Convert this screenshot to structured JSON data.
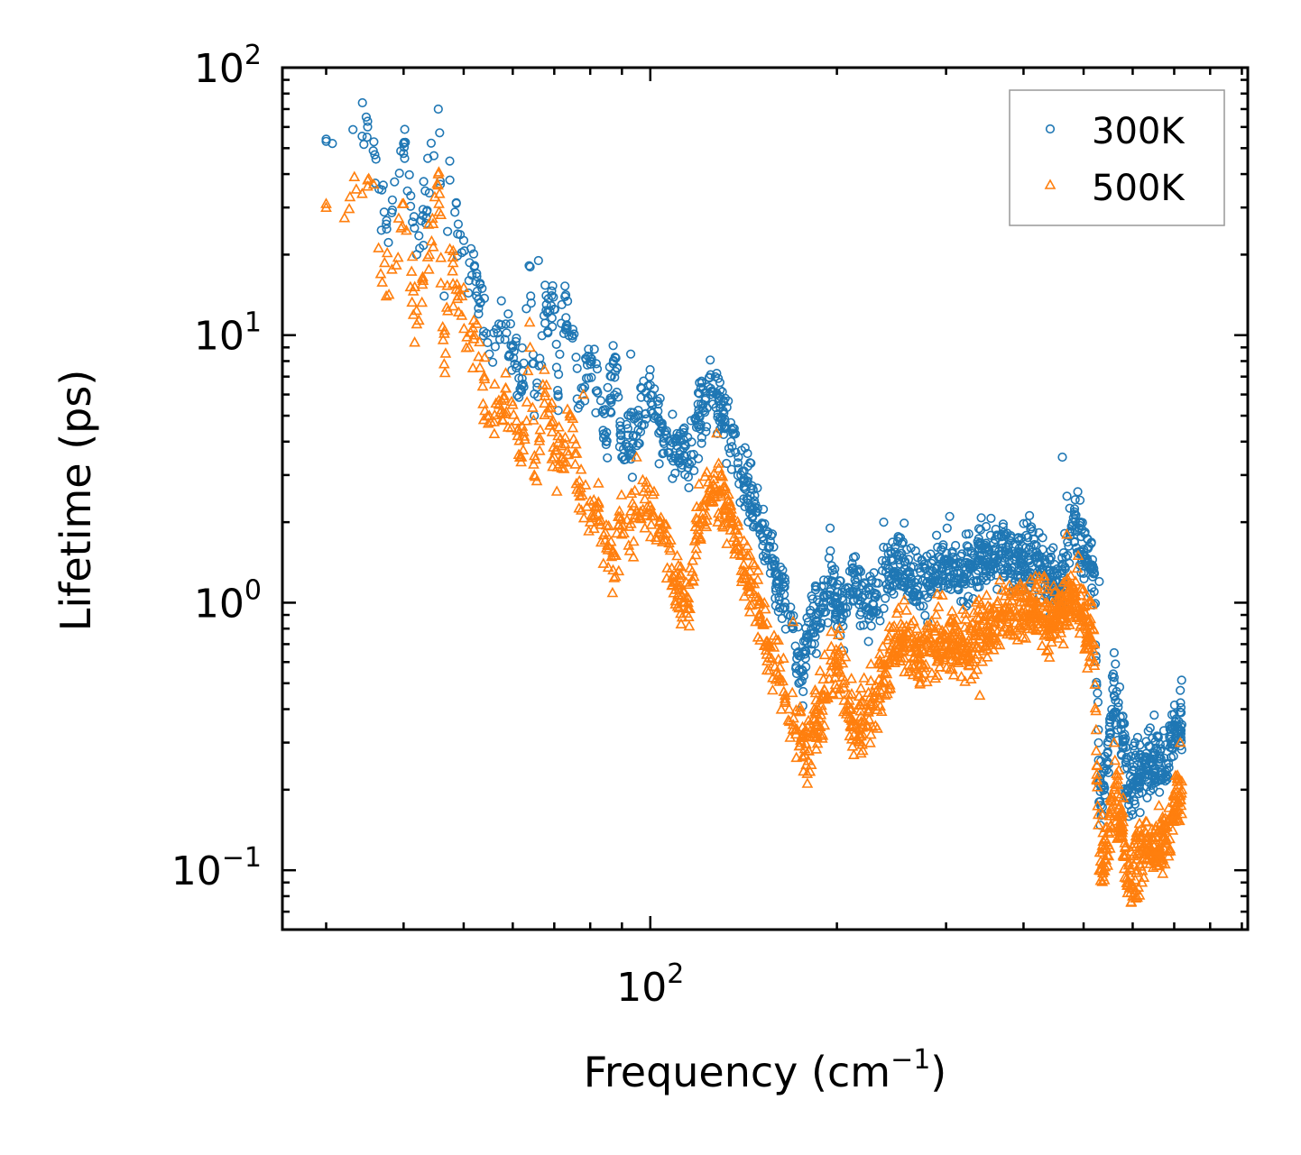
{
  "chart_data": {
    "type": "scatter",
    "title": "",
    "xlabel": "Frequency (cm",
    "xlabel_sup": "−1",
    "xlabel_end": ")",
    "ylabel": "Lifetime (ps)",
    "xscale": "log",
    "yscale": "log",
    "xlim": [
      25.5,
      920
    ],
    "ylim": [
      0.06,
      100
    ],
    "x_ticks": [
      {
        "value": 100,
        "base": "10",
        "exp": "2"
      }
    ],
    "y_ticks": [
      {
        "value": 0.1,
        "base": "10",
        "exp": "−1"
      },
      {
        "value": 1,
        "base": "10",
        "exp": "0"
      },
      {
        "value": 10,
        "base": "10",
        "exp": "1"
      },
      {
        "value": 100,
        "base": "10",
        "exp": "2"
      }
    ],
    "legend_position": "top-right",
    "series": [
      {
        "name": "300K",
        "color": "#1f77b4",
        "marker": "circle",
        "anchors": [
          [
            30,
            53
          ],
          [
            35,
            60
          ],
          [
            37.5,
            26
          ],
          [
            40,
            52
          ],
          [
            42,
            20
          ],
          [
            43,
            28
          ],
          [
            44,
            34
          ],
          [
            45.5,
            70
          ],
          [
            46.5,
            14
          ],
          [
            47.5,
            38
          ],
          [
            49,
            26
          ],
          [
            51,
            16
          ],
          [
            52,
            18
          ],
          [
            55,
            8.5
          ],
          [
            57,
            11
          ],
          [
            60,
            9
          ],
          [
            61,
            7.7
          ],
          [
            62,
            6.5
          ],
          [
            64,
            18
          ],
          [
            65,
            5
          ],
          [
            68,
            13
          ],
          [
            70,
            12.5
          ],
          [
            71,
            6
          ],
          [
            72,
            13
          ],
          [
            75,
            10.5
          ],
          [
            77,
            5.5
          ],
          [
            80,
            8
          ],
          [
            82,
            6.2
          ],
          [
            85,
            4
          ],
          [
            88,
            8.2
          ],
          [
            90,
            3.5
          ],
          [
            95,
            4.2
          ],
          [
            100,
            6.5
          ],
          [
            105,
            4
          ],
          [
            110,
            4
          ],
          [
            115,
            3.2
          ],
          [
            120,
            5
          ],
          [
            125,
            6
          ],
          [
            130,
            5.5
          ],
          [
            135,
            4
          ],
          [
            140,
            3
          ],
          [
            145,
            2.5
          ],
          [
            150,
            1.9
          ],
          [
            155,
            1.6
          ],
          [
            160,
            1.2
          ],
          [
            165,
            1
          ],
          [
            170,
            0.8
          ],
          [
            175,
            0.55
          ],
          [
            180,
            0.75
          ],
          [
            185,
            0.9
          ],
          [
            190,
            1
          ],
          [
            195,
            1.1
          ],
          [
            200,
            1
          ],
          [
            205,
            0.9
          ],
          [
            210,
            1.1
          ],
          [
            215,
            1.1
          ],
          [
            220,
            1.05
          ],
          [
            225,
            0.95
          ],
          [
            230,
            1.05
          ],
          [
            240,
            1.3
          ],
          [
            250,
            1.5
          ],
          [
            260,
            1.3
          ],
          [
            270,
            1.15
          ],
          [
            280,
            1.2
          ],
          [
            300,
            1.4
          ],
          [
            320,
            1.2
          ],
          [
            340,
            1.5
          ],
          [
            360,
            1.5
          ],
          [
            380,
            1.5
          ],
          [
            400,
            1.45
          ],
          [
            420,
            1.5
          ],
          [
            440,
            1.2
          ],
          [
            460,
            1.1
          ],
          [
            480,
            2
          ],
          [
            500,
            1.5
          ],
          [
            520,
            1.3
          ],
          [
            530,
            0.18
          ],
          [
            545,
            0.25
          ],
          [
            560,
            0.45
          ],
          [
            575,
            0.35
          ],
          [
            590,
            0.2
          ],
          [
            610,
            0.22
          ],
          [
            630,
            0.25
          ],
          [
            660,
            0.25
          ],
          [
            680,
            0.25
          ],
          [
            700,
            0.35
          ],
          [
            720,
            0.35
          ]
        ],
        "spread": [
          1.12,
          1.45
        ],
        "outliers": [
          [
            30,
            54
          ],
          [
            35,
            63
          ],
          [
            59,
            12
          ],
          [
            66,
            19
          ],
          [
            71,
            5.9
          ],
          [
            86,
            7.6
          ],
          [
            93,
            8.5
          ],
          [
            128,
            7.2
          ],
          [
            195,
            1.9
          ],
          [
            238,
            2
          ],
          [
            304,
            2.1
          ],
          [
            462,
            3.5
          ],
          [
            470,
            2.5
          ],
          [
            495,
            2
          ],
          [
            530,
            1.2
          ],
          [
            560,
            0.65
          ],
          [
            605,
            0.3
          ],
          [
            650,
            0.38
          ],
          [
            716,
            0.47
          ]
        ]
      },
      {
        "name": "500K",
        "color": "#ff7f0e",
        "marker": "triangle",
        "anchors": [
          [
            30,
            30
          ],
          [
            35,
            36
          ],
          [
            37.5,
            14
          ],
          [
            40,
            31
          ],
          [
            42,
            11
          ],
          [
            43,
            16
          ],
          [
            44,
            20
          ],
          [
            45.5,
            40
          ],
          [
            46.5,
            7.8
          ],
          [
            47.5,
            21
          ],
          [
            49,
            14
          ],
          [
            51,
            9
          ],
          [
            52,
            10
          ],
          [
            55,
            5
          ],
          [
            57,
            5.5
          ],
          [
            60,
            5.5
          ],
          [
            61,
            4.4
          ],
          [
            62,
            3.5
          ],
          [
            64,
            9
          ],
          [
            65,
            3
          ],
          [
            68,
            6.5
          ],
          [
            70,
            3.5
          ],
          [
            72,
            3.5
          ],
          [
            75,
            4.5
          ],
          [
            77,
            2.5
          ],
          [
            80,
            2
          ],
          [
            82,
            2.3
          ],
          [
            85,
            1.6
          ],
          [
            88,
            1.5
          ],
          [
            90,
            1.8
          ],
          [
            95,
            2.2
          ],
          [
            100,
            2.3
          ],
          [
            105,
            1.8
          ],
          [
            110,
            1.2
          ],
          [
            115,
            1
          ],
          [
            120,
            2
          ],
          [
            125,
            2.5
          ],
          [
            130,
            2.5
          ],
          [
            135,
            2
          ],
          [
            140,
            1.5
          ],
          [
            145,
            1.1
          ],
          [
            150,
            0.9
          ],
          [
            155,
            0.7
          ],
          [
            160,
            0.55
          ],
          [
            165,
            0.45
          ],
          [
            170,
            0.35
          ],
          [
            175,
            0.3
          ],
          [
            180,
            0.28
          ],
          [
            185,
            0.35
          ],
          [
            190,
            0.45
          ],
          [
            195,
            0.55
          ],
          [
            200,
            0.6
          ],
          [
            205,
            0.5
          ],
          [
            210,
            0.4
          ],
          [
            215,
            0.35
          ],
          [
            220,
            0.35
          ],
          [
            225,
            0.4
          ],
          [
            230,
            0.45
          ],
          [
            240,
            0.55
          ],
          [
            250,
            0.7
          ],
          [
            260,
            0.7
          ],
          [
            270,
            0.65
          ],
          [
            280,
            0.7
          ],
          [
            300,
            0.75
          ],
          [
            320,
            0.65
          ],
          [
            340,
            0.75
          ],
          [
            360,
            0.85
          ],
          [
            380,
            0.9
          ],
          [
            400,
            0.95
          ],
          [
            420,
            0.9
          ],
          [
            440,
            0.85
          ],
          [
            460,
            0.9
          ],
          [
            480,
            1.1
          ],
          [
            500,
            0.85
          ],
          [
            520,
            0.7
          ],
          [
            530,
            0.1
          ],
          [
            545,
            0.12
          ],
          [
            560,
            0.2
          ],
          [
            575,
            0.15
          ],
          [
            590,
            0.09
          ],
          [
            610,
            0.1
          ],
          [
            630,
            0.12
          ],
          [
            660,
            0.12
          ],
          [
            680,
            0.13
          ],
          [
            700,
            0.18
          ],
          [
            720,
            0.2
          ]
        ],
        "spread": [
          1.12,
          1.45
        ],
        "outliers": [
          [
            30,
            31
          ],
          [
            35,
            38
          ],
          [
            71,
            4.2
          ],
          [
            78,
            6
          ],
          [
            95,
            3.5
          ],
          [
            128,
            4.3
          ],
          [
            170,
            0.85
          ],
          [
            202,
            0.8
          ],
          [
            340,
            0.45
          ],
          [
            470,
            1.8
          ],
          [
            490,
            1.5
          ],
          [
            560,
            0.3
          ],
          [
            600,
            0.08
          ],
          [
            716,
            0.3
          ]
        ]
      }
    ]
  }
}
